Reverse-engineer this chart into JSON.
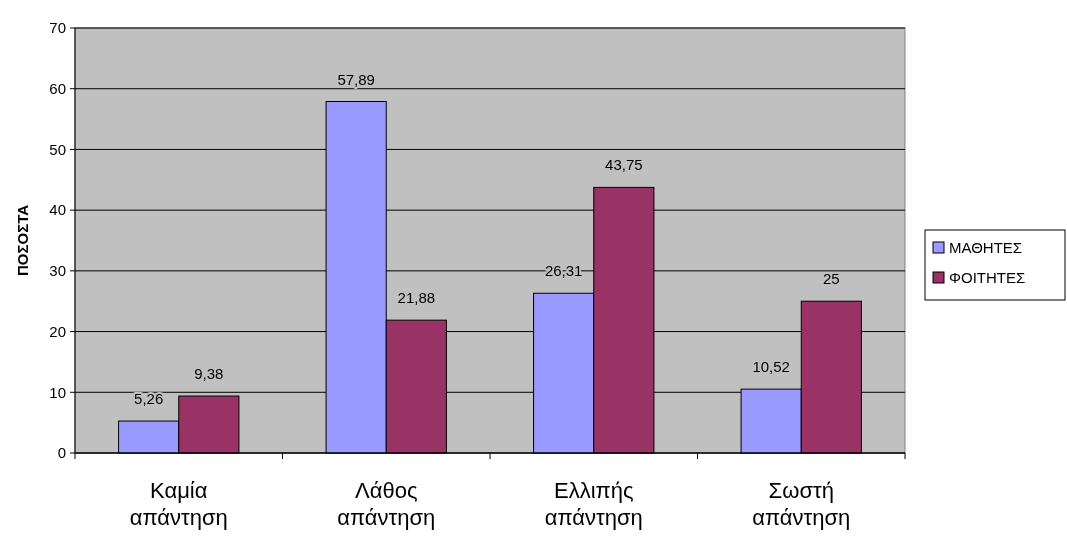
{
  "chart_data": {
    "type": "bar",
    "ylabel": "ΠΟΣΟΣΤΑ",
    "categories": [
      "Καμία απάντηση",
      "Λάθος απάντηση",
      "Ελλιπής απάντηση",
      "Σωστή απάντηση"
    ],
    "series": [
      {
        "name": "ΜΑΘΗΤΕΣ",
        "color": "#9999ff",
        "values": [
          5.26,
          57.89,
          26.31,
          10.52
        ],
        "value_labels": [
          "5,26",
          "57,89",
          "26,31",
          "10,52"
        ]
      },
      {
        "name": "ΦΟΙΤΗΤΕΣ",
        "color": "#993366",
        "values": [
          9.38,
          21.88,
          43.75,
          25
        ],
        "value_labels": [
          "9,38",
          "21,88",
          "43,75",
          "25"
        ]
      }
    ],
    "ylim": [
      0,
      70
    ],
    "yticks": [
      0,
      10,
      20,
      30,
      40,
      50,
      60,
      70
    ],
    "grid": "y",
    "legend": "right"
  }
}
